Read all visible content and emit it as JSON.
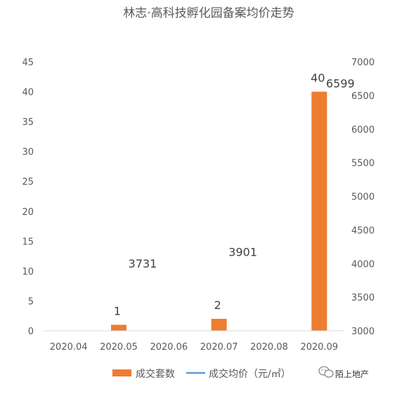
{
  "chart_data": {
    "type": "bar",
    "title": "林志·高科技孵化园备案均价走势",
    "categories": [
      "2020.04",
      "2020.05",
      "2020.06",
      "2020.07",
      "2020.08",
      "2020.09"
    ],
    "series": [
      {
        "name": "成交套数",
        "type": "bar",
        "axis": "left",
        "color": "#ED7D31",
        "values": [
          0,
          1,
          0,
          2,
          0,
          40
        ],
        "labels": [
          "",
          "1",
          "",
          "2",
          "",
          "40"
        ]
      },
      {
        "name": "成交均价（元/㎡）",
        "type": "line",
        "axis": "right",
        "color": "#5B9BD5",
        "values": [
          null,
          3731,
          null,
          3901,
          null,
          6599
        ],
        "labels": [
          "",
          "3731",
          "",
          "3901",
          "",
          "6599"
        ]
      }
    ],
    "y_left": {
      "min": 0,
      "max": 45,
      "step": 5
    },
    "y_right": {
      "min": 3000,
      "max": 7000,
      "step": 500
    },
    "grid": false,
    "legend_position": "bottom"
  },
  "watermark": {
    "icon": "wechat-icon",
    "text": "陌上地产"
  }
}
